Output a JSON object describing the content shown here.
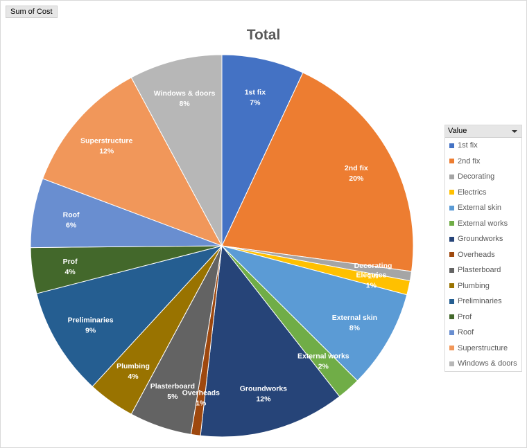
{
  "pivot": {
    "field_button": "Sum of Cost"
  },
  "legend": {
    "header": "Value"
  },
  "chart_data": {
    "type": "pie",
    "title": "Total",
    "legend_position": "right",
    "slices": [
      {
        "label": "1st fix",
        "percent_label": "7%",
        "value": 7.0,
        "color": "#4472c4"
      },
      {
        "label": "2nd fix",
        "percent_label": "20%",
        "value": 20.3,
        "color": "#ed7d31"
      },
      {
        "label": "Decorating",
        "percent_label": "1%",
        "value": 0.8,
        "color": "#a5a5a5"
      },
      {
        "label": "Electrics",
        "percent_label": "1%",
        "value": 1.2,
        "color": "#ffc000"
      },
      {
        "label": "External skin",
        "percent_label": "8%",
        "value": 8.4,
        "color": "#5b9bd5"
      },
      {
        "label": "External works",
        "percent_label": "2%",
        "value": 2.0,
        "color": "#70ad47"
      },
      {
        "label": "Groundworks",
        "percent_label": "12%",
        "value": 12.4,
        "color": "#264478"
      },
      {
        "label": "Overheads",
        "percent_label": "1%",
        "value": 0.8,
        "color": "#9e480e"
      },
      {
        "label": "Plasterboard",
        "percent_label": "5%",
        "value": 5.3,
        "color": "#636363"
      },
      {
        "label": "Plumbing",
        "percent_label": "4%",
        "value": 4.0,
        "color": "#997300"
      },
      {
        "label": "Preliminaries",
        "percent_label": "9%",
        "value": 9.2,
        "color": "#255e91"
      },
      {
        "label": "Prof",
        "percent_label": "4%",
        "value": 3.9,
        "color": "#43682b"
      },
      {
        "label": "Roof",
        "percent_label": "6%",
        "value": 5.9,
        "color": "#698ed0"
      },
      {
        "label": "Superstructure",
        "percent_label": "12%",
        "value": 11.5,
        "color": "#f1975a"
      },
      {
        "label": "Windows & doors",
        "percent_label": "8%",
        "value": 7.9,
        "color": "#b7b7b7"
      }
    ]
  }
}
